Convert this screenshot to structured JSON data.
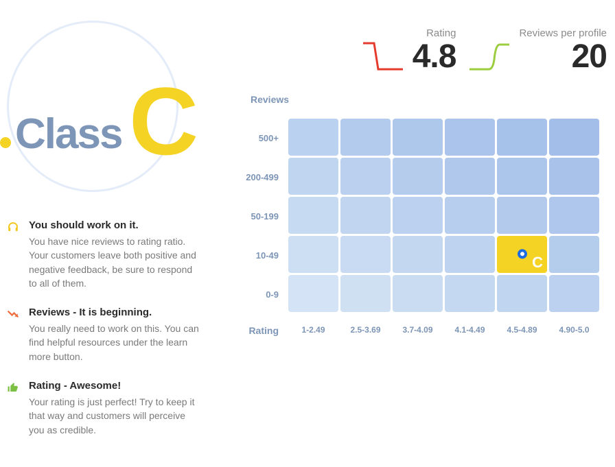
{
  "class_badge": {
    "prefix": "Class",
    "letter": "C",
    "prefix_color": "#7d95b6",
    "letter_color": "#f5d324",
    "circle_color": "#e4ecf9",
    "dot_color": "#f5d324"
  },
  "insights": [
    {
      "icon": "headphones",
      "icon_color": "#f5c518",
      "title": "You should work on it.",
      "desc": "You have nice reviews to rating ratio. Your customers leave both positive and negative feedback, be sure to respond to all of them."
    },
    {
      "icon": "trend-down",
      "icon_color": "#f06a3a",
      "title": "Reviews - It is beginning.",
      "desc": "You really need to work on this. You can find helpful resources under the learn more button."
    },
    {
      "icon": "thumbs-up",
      "icon_color": "#7bc043",
      "title": "Rating - Awesome!",
      "desc": "Your rating is just perfect! Try to keep it that way and customers will perceive you as credible."
    }
  ],
  "metrics": {
    "rating": {
      "label": "Rating",
      "value": "4.8",
      "spark_color": "#e43b2e"
    },
    "reviews": {
      "label": "Reviews per profile",
      "value": "20",
      "spark_color": "#9bcd3e"
    }
  },
  "heatmap": {
    "y_axis_label": "Reviews",
    "x_axis_label": "Rating",
    "y_labels": [
      "500+",
      "200-499",
      "50-199",
      "10-49",
      "0-9"
    ],
    "x_labels": [
      "1-2.49",
      "2.5-3.69",
      "3.7-4.09",
      "4.1-4.49",
      "4.5-4.89",
      "4.90-5.0"
    ],
    "cols": 6,
    "rows": 5,
    "cell_colors": [
      [
        "#bad1ef",
        "#b3cbed",
        "#aec8ec",
        "#aac4eb",
        "#a6c1ea",
        "#a2bee9"
      ],
      [
        "#c0d5f0",
        "#bad0ee",
        "#b5cced",
        "#b0c8ec",
        "#acc5eb",
        "#a8c2ea"
      ],
      [
        "#c6daf2",
        "#c1d5f0",
        "#bcd1ef",
        "#b7ceee",
        "#b3caed",
        "#afc7ec"
      ],
      [
        "#cddff3",
        "#c8dbf2",
        "#c3d7f0",
        "#bed3ef",
        "#f5d324",
        "#b5cded"
      ],
      [
        "#d4e3f5",
        "#cfe0f3",
        "#cadcf2",
        "#c5d8f1",
        "#c0d5f0",
        "#bcd1ef"
      ]
    ],
    "highlight": {
      "row": 3,
      "col": 4,
      "letter": "C",
      "marker_color": "#1b6de0"
    }
  }
}
